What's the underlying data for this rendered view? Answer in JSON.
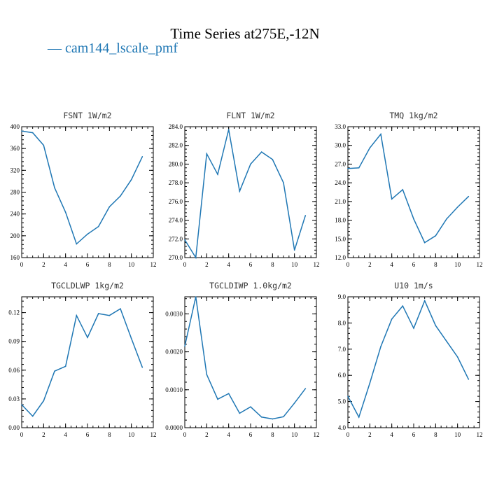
{
  "title": "Time Series at275E,-12N",
  "legend": {
    "dash": "—",
    "label": "cam144_lscale_pmf"
  },
  "colors": {
    "series": "#1f77b4",
    "axis": "#000000"
  },
  "chart_data": [
    {
      "type": "line",
      "title": "FSNT   1W/m2",
      "x": [
        0,
        1,
        2,
        3,
        4,
        5,
        6,
        7,
        8,
        9,
        10,
        11
      ],
      "series": [
        {
          "values": [
            392,
            389,
            366,
            288,
            243,
            185,
            203,
            217,
            253,
            273,
            303,
            345
          ]
        }
      ],
      "xlim": [
        0,
        12
      ],
      "ylim": [
        160,
        400
      ],
      "xticks": [
        0,
        2,
        4,
        6,
        8,
        10,
        12
      ],
      "yticks": [
        160,
        200,
        240,
        280,
        320,
        360,
        400
      ],
      "ytick_labels": [
        "160",
        "200",
        "240",
        "280",
        "320",
        "360",
        "400"
      ]
    },
    {
      "type": "line",
      "title": "FLNT   1W/m2",
      "x": [
        0,
        1,
        2,
        3,
        4,
        5,
        6,
        7,
        8,
        9,
        10,
        11
      ],
      "series": [
        {
          "values": [
            271.9,
            270.0,
            281.1,
            278.9,
            283.7,
            277.1,
            280.0,
            281.3,
            280.5,
            278.0,
            270.8,
            274.5
          ]
        }
      ],
      "xlim": [
        0,
        12
      ],
      "ylim": [
        270,
        284
      ],
      "xticks": [
        0,
        2,
        4,
        6,
        8,
        10,
        12
      ],
      "yticks": [
        270,
        272,
        274,
        276,
        278,
        280,
        282,
        284
      ],
      "ytick_labels": [
        "270.0",
        "272.0",
        "274.0",
        "276.0",
        "278.0",
        "280.0",
        "282.0",
        "284.0"
      ]
    },
    {
      "type": "line",
      "title": "TMQ   1kg/m2",
      "x": [
        0,
        1,
        2,
        3,
        4,
        5,
        6,
        7,
        8,
        9,
        10,
        11
      ],
      "series": [
        {
          "values": [
            26.3,
            26.4,
            29.6,
            31.8,
            21.4,
            22.9,
            18.2,
            14.4,
            15.5,
            18.2,
            20.1,
            21.8
          ]
        }
      ],
      "xlim": [
        0,
        12
      ],
      "ylim": [
        12,
        33
      ],
      "xticks": [
        0,
        2,
        4,
        6,
        8,
        10,
        12
      ],
      "yticks": [
        12,
        15,
        18,
        21,
        24,
        27,
        30,
        33
      ],
      "ytick_labels": [
        "12.0",
        "15.0",
        "18.0",
        "21.0",
        "24.0",
        "27.0",
        "30.0",
        "33.0"
      ]
    },
    {
      "type": "line",
      "title": "TGCLDLWP   1kg/m2",
      "x": [
        0,
        1,
        2,
        3,
        4,
        5,
        6,
        7,
        8,
        9,
        10,
        11
      ],
      "series": [
        {
          "values": [
            0.024,
            0.012,
            0.028,
            0.059,
            0.064,
            0.117,
            0.094,
            0.119,
            0.117,
            0.124,
            0.093,
            0.063
          ]
        }
      ],
      "xlim": [
        0,
        12
      ],
      "ylim": [
        0,
        0.1365
      ],
      "xticks": [
        0,
        2,
        4,
        6,
        8,
        10,
        12
      ],
      "yticks": [
        0,
        0.03,
        0.06,
        0.09,
        0.12
      ],
      "ytick_labels": [
        "0.00",
        "0.03",
        "0.06",
        "0.09",
        "0.12"
      ]
    },
    {
      "type": "line",
      "title": "TGCLDIWP   1.0kg/m2",
      "x": [
        0,
        1,
        2,
        3,
        4,
        5,
        6,
        7,
        8,
        9,
        10,
        11
      ],
      "series": [
        {
          "values": [
            0.00215,
            0.00345,
            0.0014,
            0.00075,
            0.0009,
            0.00038,
            0.00055,
            0.00028,
            0.00023,
            0.00029,
            0.00065,
            0.00103
          ]
        }
      ],
      "xlim": [
        0,
        12
      ],
      "ylim": [
        0,
        0.00345
      ],
      "xticks": [
        0,
        2,
        4,
        6,
        8,
        10,
        12
      ],
      "yticks": [
        0,
        0.001,
        0.002,
        0.003
      ],
      "ytick_labels": [
        "0.0000",
        "0.0010",
        "0.0020",
        "0.0030"
      ]
    },
    {
      "type": "line",
      "title": "U10   1m/s",
      "x": [
        0,
        1,
        2,
        3,
        4,
        5,
        6,
        7,
        8,
        9,
        10,
        11
      ],
      "series": [
        {
          "values": [
            5.2,
            4.4,
            5.7,
            7.1,
            8.15,
            8.65,
            7.8,
            8.85,
            7.9,
            7.3,
            6.7,
            5.85
          ]
        }
      ],
      "xlim": [
        0,
        12
      ],
      "ylim": [
        4,
        9
      ],
      "xticks": [
        0,
        2,
        4,
        6,
        8,
        10,
        12
      ],
      "yticks": [
        4,
        5,
        6,
        7,
        8,
        9
      ],
      "ytick_labels": [
        "4.0",
        "5.0",
        "6.0",
        "7.0",
        "8.0",
        "9.0"
      ]
    }
  ]
}
